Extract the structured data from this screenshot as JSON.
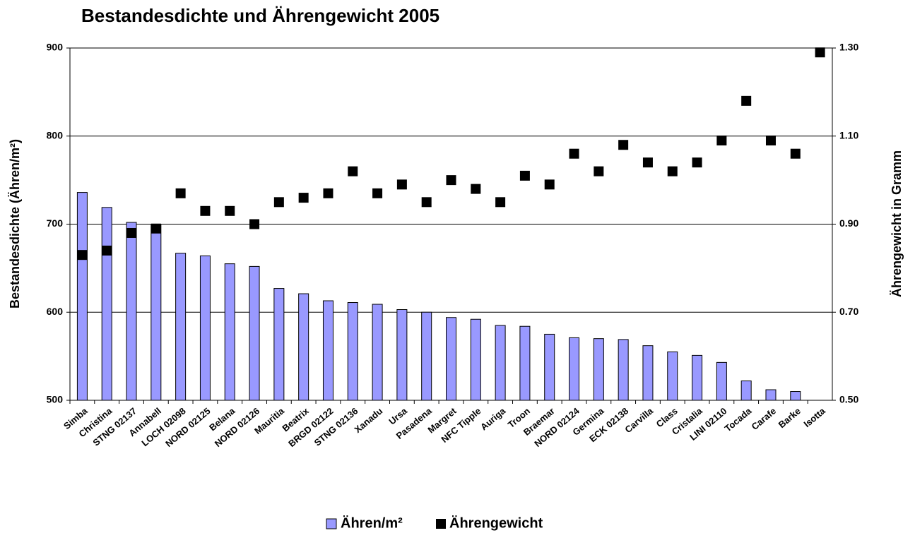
{
  "chart_data": {
    "type": "bar_scatter",
    "title": "Bestandesdichte und Ährengewicht 2005",
    "y_label": "Bestandesdichte (Ähren/m²)",
    "y2_label": "Ährengewicht in Gramm",
    "categories": [
      "Simba",
      "Christina",
      "STNG 02137",
      "Annabell",
      "LOCH 02098",
      "NORD 02125",
      "Belana",
      "NORD 02126",
      "Mauritia",
      "Beatrix",
      "BRGD 02122",
      "STNG 02136",
      "Xanadu",
      "Ursa",
      "Pasadena",
      "Margret",
      "NFC Tipple",
      "Auriga",
      "Troon",
      "Braemar",
      "NORD 02124",
      "Germina",
      "ECK 02138",
      "Carvilla",
      "Class",
      "Cristalia",
      "LINI 02110",
      "Tocada",
      "Carafe",
      "Barke",
      "Isotta"
    ],
    "series": [
      {
        "name": "Ähren/m²",
        "color": "#9999ff",
        "values": [
          736,
          719,
          702,
          700,
          667,
          664,
          655,
          652,
          627,
          621,
          613,
          611,
          609,
          603,
          600,
          594,
          592,
          585,
          584,
          575,
          571,
          570,
          569,
          562,
          555,
          551,
          543,
          522,
          512,
          510,
          null
        ]
      },
      {
        "name": "Ährengewicht",
        "color": "#000000",
        "axis": "y2",
        "values": [
          0.83,
          0.84,
          0.88,
          0.89,
          0.97,
          0.93,
          0.93,
          0.9,
          0.95,
          0.96,
          0.97,
          1.02,
          0.97,
          0.99,
          0.95,
          1.0,
          0.98,
          0.95,
          1.01,
          0.99,
          1.06,
          1.02,
          1.08,
          1.04,
          1.02,
          1.04,
          1.09,
          1.18,
          1.09,
          1.06,
          1.29
        ]
      }
    ],
    "ylim": [
      500,
      900
    ],
    "yticks": [
      500,
      600,
      700,
      800,
      900
    ],
    "y2lim": [
      0.5,
      1.3
    ],
    "y2ticks": [
      {
        "value": 0.5,
        "label": "0.50"
      },
      {
        "value": 0.7,
        "label": "0.70"
      },
      {
        "value": 0.9,
        "label": "0.90"
      },
      {
        "value": 1.1,
        "label": "1.10"
      },
      {
        "value": 1.3,
        "label": "1.30"
      }
    ],
    "grid": true,
    "legend": "bottom"
  }
}
